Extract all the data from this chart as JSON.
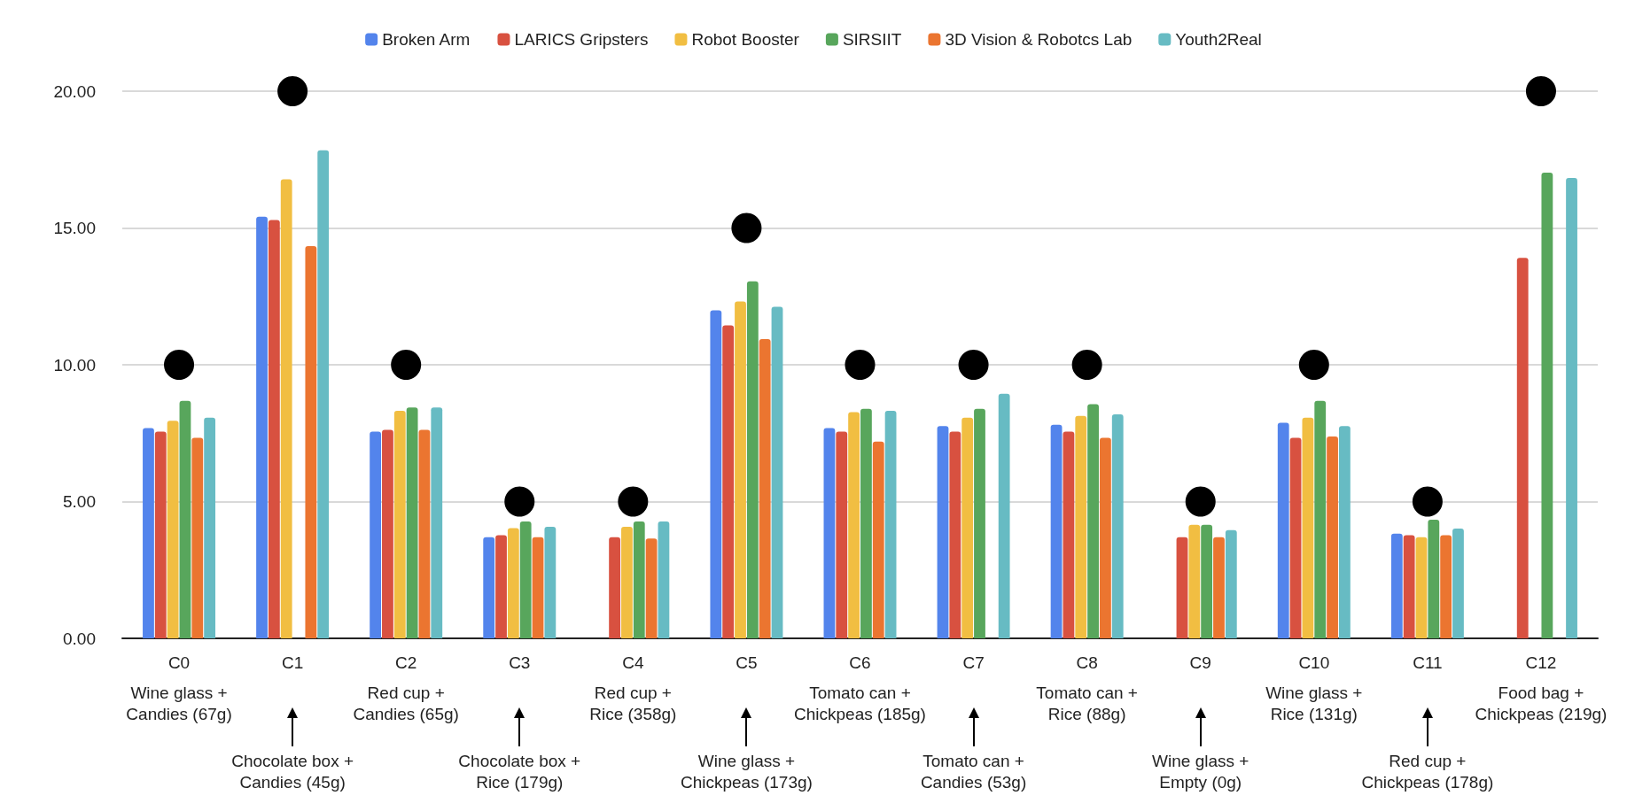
{
  "chart_data": {
    "type": "bar",
    "categories": [
      "C0",
      "C1",
      "C2",
      "C3",
      "C4",
      "C5",
      "C6",
      "C7",
      "C8",
      "C9",
      "C10",
      "C11",
      "C12"
    ],
    "series": [
      {
        "name": "Broken Arm",
        "color": "#5384ec",
        "values": [
          7.69,
          15.41,
          7.56,
          3.7,
          null,
          11.99,
          7.69,
          7.76,
          7.81,
          null,
          7.88,
          3.83,
          null
        ]
      },
      {
        "name": "LARICS Gripsters",
        "color": "#d85140",
        "values": [
          7.56,
          15.29,
          7.62,
          3.77,
          3.7,
          11.44,
          7.56,
          7.56,
          7.56,
          3.7,
          7.33,
          3.77,
          13.91
        ]
      },
      {
        "name": "Robot Booster",
        "color": "#f1be42",
        "values": [
          7.95,
          16.78,
          8.32,
          4.03,
          4.08,
          12.31,
          8.27,
          8.07,
          8.13,
          4.15,
          8.07,
          3.7,
          null
        ]
      },
      {
        "name": "SIRSIIT",
        "color": "#58a65c",
        "values": [
          8.68,
          null,
          8.44,
          4.27,
          4.27,
          13.05,
          8.39,
          8.39,
          8.56,
          4.15,
          8.68,
          4.34,
          17.02
        ]
      },
      {
        "name": "3D Vision & Robotcs Lab",
        "color": "#eb7530",
        "values": [
          7.33,
          14.34,
          7.62,
          3.7,
          3.65,
          10.94,
          7.19,
          null,
          7.33,
          3.7,
          7.38,
          3.77,
          null
        ]
      },
      {
        "name": "Youth2Real",
        "color": "#67bbc3",
        "values": [
          8.07,
          17.84,
          8.44,
          4.08,
          4.27,
          12.12,
          8.32,
          8.94,
          8.19,
          3.96,
          7.76,
          4.01,
          16.83
        ]
      },
      {
        "type": "scatter",
        "color": "#000000",
        "x": [
          "C0",
          "C1",
          "C2",
          "C3",
          "C4",
          "C5",
          "C6",
          "C7",
          "C8",
          "C9",
          "C10",
          "C11",
          "C12"
        ],
        "values": [
          10,
          20,
          10,
          5,
          5,
          15,
          10,
          10,
          10,
          5,
          10,
          5,
          20
        ]
      }
    ],
    "ylim": [
      0,
      20
    ],
    "yticks": [
      {
        "value": 0,
        "label": "0.00"
      },
      {
        "value": 5,
        "label": "5.00"
      },
      {
        "value": 10,
        "label": "10.00"
      },
      {
        "value": 15,
        "label": "15.00"
      },
      {
        "value": 20,
        "label": "20.00"
      }
    ],
    "grid": "y",
    "legend": "top",
    "marker": "circle",
    "annotations": [
      "Wine glass +\nCandies (67g)",
      "Chocolate box +\nCandies (45g)",
      "Red cup +\nCandies (65g)",
      "Chocolate box +\nRice (179g)",
      "Red cup +\nRice (358g)",
      "Wine glass +\nChickpeas (173g)",
      "Tomato can +\nChickpeas (185g)",
      "Tomato can +\nCandies (53g)",
      "Tomato can +\nRice (88g)",
      "Wine glass +\nEmpty (0g)",
      "Wine glass +\nRice (131g)",
      "Red cup +\nChickpeas (178g)",
      "Food bag +\nChickpeas (219g)"
    ]
  }
}
